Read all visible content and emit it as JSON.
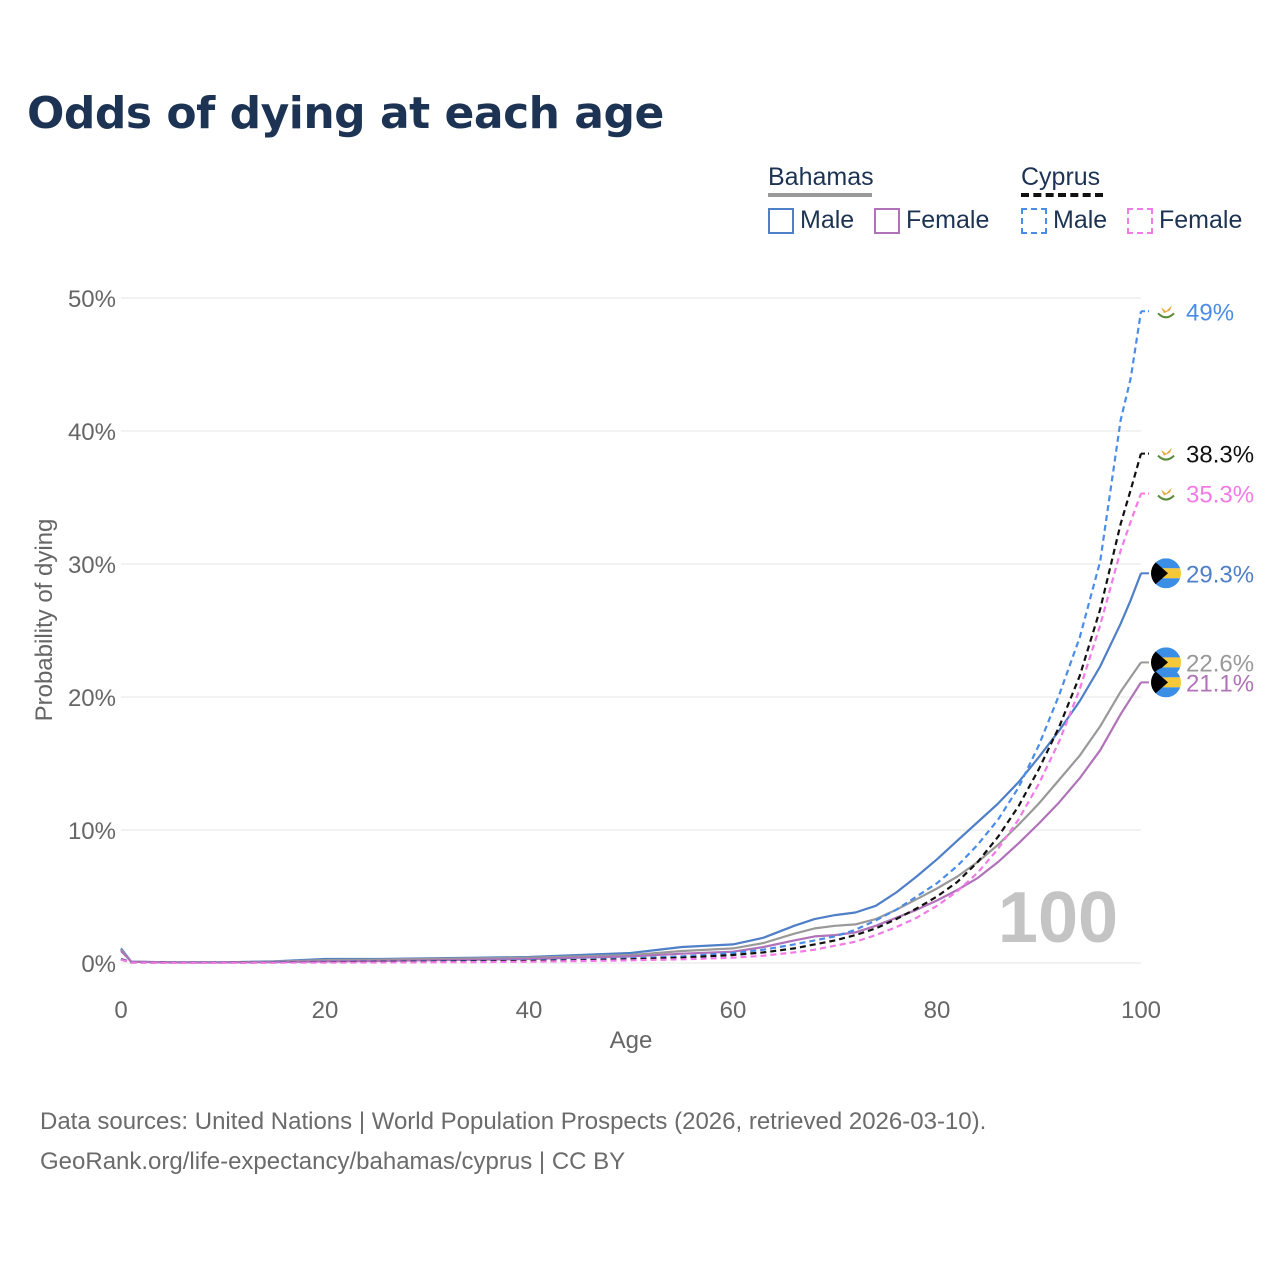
{
  "title": "Odds of dying at each age",
  "legend": {
    "groups": [
      {
        "country": "Bahamas",
        "underline_color": "#999999",
        "underline_style": "solid",
        "items": [
          {
            "label": "Male",
            "color": "#4f7fc7",
            "style": "solid"
          },
          {
            "label": "Female",
            "color": "#b072b8",
            "style": "solid"
          }
        ]
      },
      {
        "country": "Cyprus",
        "underline_color": "#111111",
        "underline_style": "dashed",
        "items": [
          {
            "label": "Male",
            "color": "#4a8de8",
            "style": "dashed"
          },
          {
            "label": "Female",
            "color": "#f27ae6",
            "style": "dashed"
          }
        ]
      }
    ]
  },
  "watermark_age": "100",
  "footer": {
    "line1": "Data sources: United Nations | World Population Prospects (2026, retrieved 2026-03-10).",
    "line2": "GeoRank.org/life-expectancy/bahamas/cyprus | CC BY"
  },
  "chart_data": {
    "type": "line",
    "title": "Odds of dying at each age",
    "xlabel": "Age",
    "ylabel": "Probability of dying",
    "xlim": [
      0,
      100
    ],
    "ylim": [
      0,
      50
    ],
    "xticks": [
      0,
      20,
      40,
      60,
      80,
      100
    ],
    "yticks": [
      0,
      10,
      20,
      30,
      40,
      50
    ],
    "ytick_labels": [
      "0%",
      "10%",
      "20%",
      "30%",
      "40%",
      "50%"
    ],
    "grid": true,
    "x": [
      0,
      1,
      5,
      10,
      15,
      20,
      25,
      30,
      35,
      40,
      45,
      50,
      55,
      60,
      63,
      66,
      68,
      70,
      72,
      74,
      76,
      78,
      80,
      82,
      84,
      86,
      88,
      90,
      92,
      94,
      96,
      98,
      99,
      100
    ],
    "series": [
      {
        "name": "Bahamas Male",
        "country": "Bahamas",
        "sex": "Male",
        "color": "#4f7fc7",
        "dash": "solid",
        "flag": "bahamas",
        "end_label": "29.3%",
        "values": [
          1.1,
          0.1,
          0.05,
          0.05,
          0.12,
          0.3,
          0.3,
          0.35,
          0.4,
          0.45,
          0.6,
          0.75,
          1.2,
          1.4,
          1.9,
          2.8,
          3.3,
          3.6,
          3.8,
          4.3,
          5.3,
          6.5,
          7.8,
          9.2,
          10.6,
          12.0,
          13.6,
          15.5,
          17.5,
          19.7,
          22.3,
          25.5,
          27.3,
          29.3
        ]
      },
      {
        "name": "Bahamas Total",
        "country": "Bahamas",
        "sex": "Total",
        "color": "#999999",
        "dash": "solid",
        "flag": "bahamas",
        "end_label": "22.6%",
        "values": [
          1.0,
          0.1,
          0.05,
          0.05,
          0.1,
          0.22,
          0.25,
          0.3,
          0.35,
          0.4,
          0.5,
          0.6,
          0.9,
          1.1,
          1.5,
          2.2,
          2.6,
          2.8,
          2.9,
          3.3,
          4.0,
          4.8,
          5.6,
          6.5,
          7.6,
          8.9,
          10.4,
          12.0,
          13.8,
          15.6,
          17.8,
          20.4,
          21.5,
          22.6
        ]
      },
      {
        "name": "Bahamas Female",
        "country": "Bahamas",
        "sex": "Female",
        "color": "#b072b8",
        "dash": "solid",
        "flag": "bahamas",
        "end_label": "21.1%",
        "values": [
          0.9,
          0.1,
          0.04,
          0.04,
          0.06,
          0.12,
          0.15,
          0.2,
          0.25,
          0.3,
          0.4,
          0.5,
          0.7,
          0.85,
          1.2,
          1.7,
          2.0,
          2.1,
          2.3,
          2.8,
          3.4,
          4.0,
          4.7,
          5.5,
          6.4,
          7.6,
          9.0,
          10.5,
          12.1,
          13.9,
          16.0,
          18.7,
          19.9,
          21.1
        ]
      },
      {
        "name": "Cyprus Male",
        "country": "Cyprus",
        "sex": "Male",
        "color": "#4a8de8",
        "dash": "dashed",
        "flag": "cyprus",
        "end_label": "49%",
        "values": [
          0.3,
          0.05,
          0.02,
          0.02,
          0.05,
          0.08,
          0.1,
          0.12,
          0.15,
          0.2,
          0.25,
          0.35,
          0.5,
          0.75,
          1.0,
          1.4,
          1.7,
          2.0,
          2.5,
          3.2,
          4.0,
          5.0,
          6.0,
          7.3,
          8.9,
          10.8,
          13.2,
          16.4,
          20.2,
          24.5,
          30.2,
          40.8,
          44.0,
          49.0
        ]
      },
      {
        "name": "Cyprus Total",
        "country": "Cyprus",
        "sex": "Total",
        "color": "#111111",
        "dash": "dashed",
        "flag": "cyprus",
        "end_label": "38.3%",
        "values": [
          0.28,
          0.04,
          0.02,
          0.02,
          0.04,
          0.06,
          0.08,
          0.1,
          0.12,
          0.15,
          0.2,
          0.28,
          0.4,
          0.6,
          0.8,
          1.1,
          1.4,
          1.7,
          2.1,
          2.6,
          3.3,
          4.1,
          5.0,
          6.1,
          7.6,
          9.5,
          11.8,
          14.6,
          17.8,
          21.6,
          26.6,
          33.0,
          35.6,
          38.3
        ]
      },
      {
        "name": "Cyprus Female",
        "country": "Cyprus",
        "sex": "Female",
        "color": "#f27ae6",
        "dash": "dashed",
        "flag": "cyprus",
        "end_label": "35.3%",
        "values": [
          0.25,
          0.03,
          0.01,
          0.01,
          0.02,
          0.03,
          0.04,
          0.05,
          0.07,
          0.1,
          0.14,
          0.2,
          0.28,
          0.4,
          0.55,
          0.8,
          1.0,
          1.3,
          1.6,
          2.1,
          2.7,
          3.4,
          4.3,
          5.4,
          6.8,
          8.6,
          10.8,
          13.5,
          16.7,
          20.6,
          25.4,
          31.0,
          33.2,
          35.3
        ]
      }
    ]
  }
}
